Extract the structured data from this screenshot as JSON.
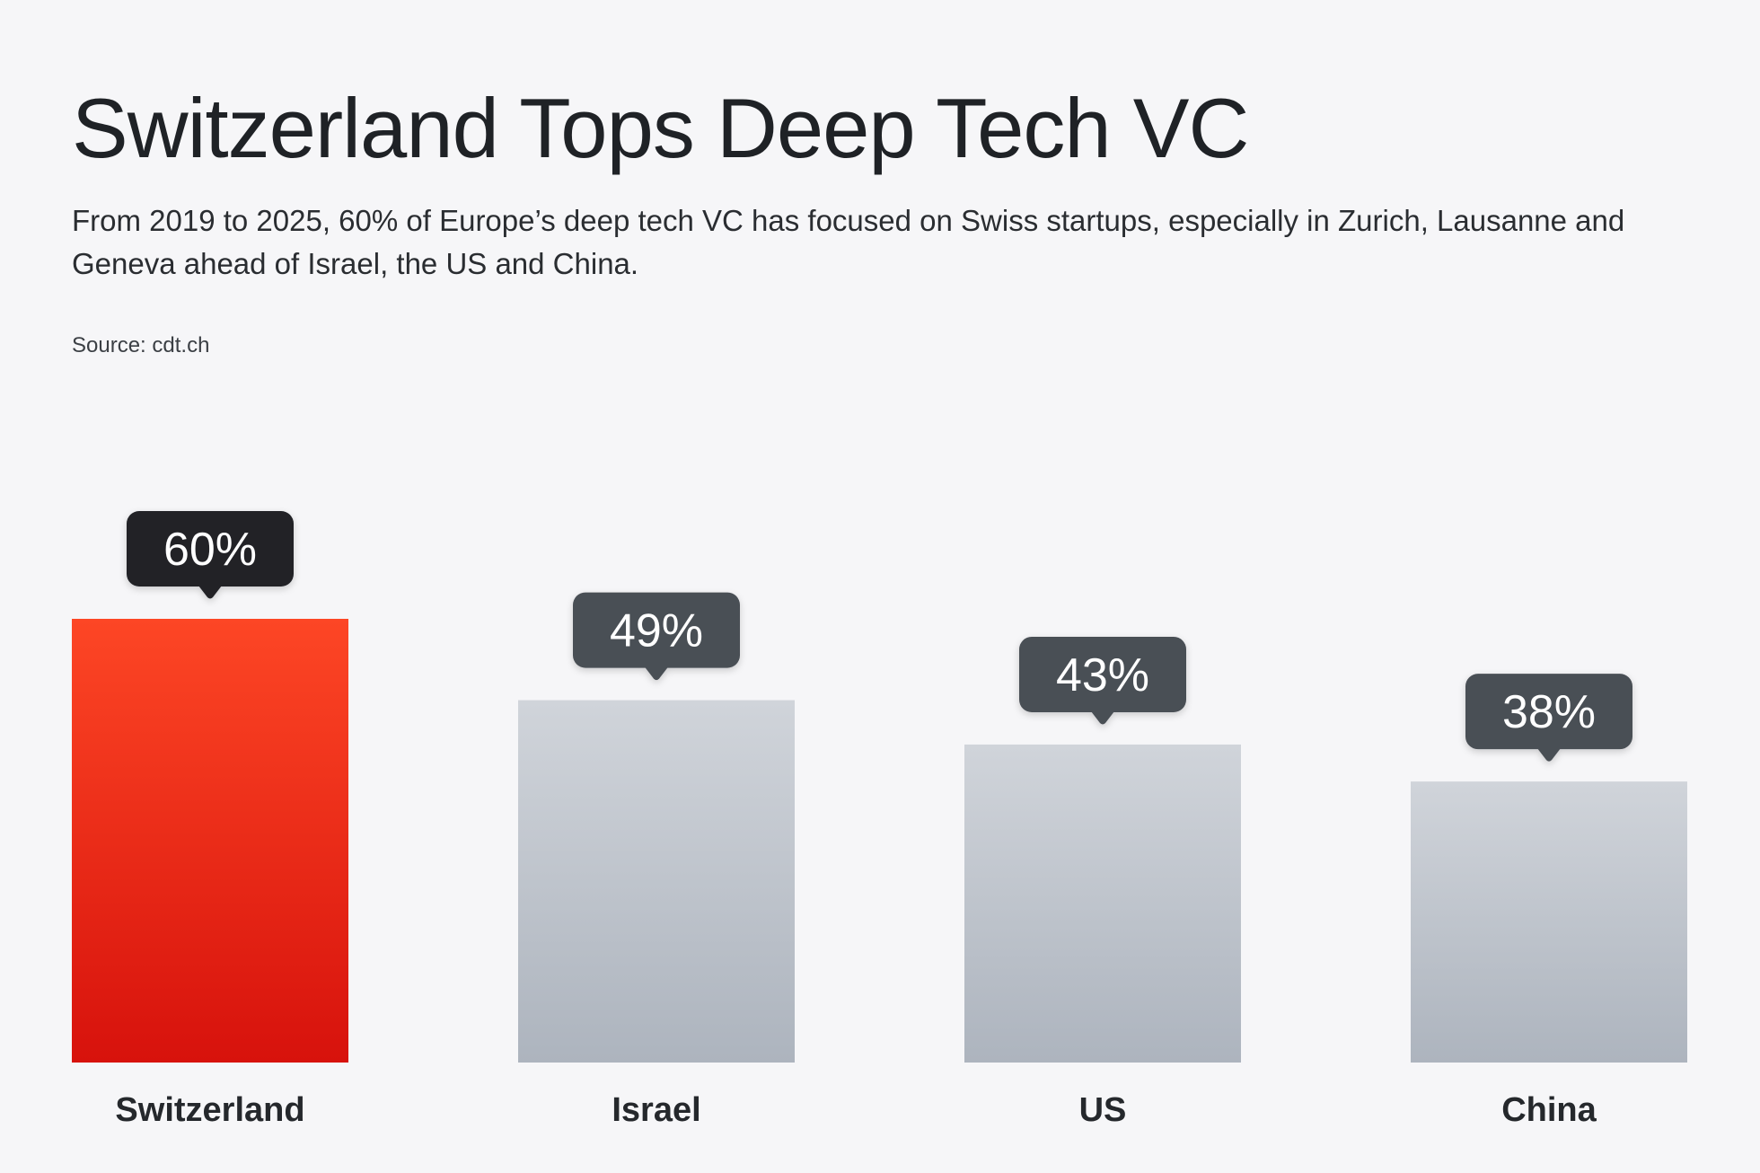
{
  "title": "Switzerland Tops Deep Tech VC",
  "subtitle": "From 2019 to 2025, 60% of Europe’s deep tech VC has focused on Swiss startups, especially in Zurich, Lausanne and Geneva ahead of Israel, the US and China.",
  "source": "Source: cdt.ch",
  "colors": {
    "background": "#f6f6f8",
    "highlight_top": "#fd4625",
    "highlight_bottom": "#d7120c",
    "bar_top": "#d0d4da",
    "bar_bottom": "#adb4be",
    "tooltip_highlight": "#202428",
    "tooltip_default": "#4a4f55"
  },
  "chart_data": {
    "type": "bar",
    "categories": [
      "Switzerland",
      "Israel",
      "US",
      "China"
    ],
    "values": [
      60,
      49,
      43,
      38
    ],
    "value_labels": [
      "60%",
      "49%",
      "43%",
      "38%"
    ],
    "highlight_index": 0,
    "ylim": [
      0,
      60
    ],
    "grid": false,
    "legend": "none"
  }
}
